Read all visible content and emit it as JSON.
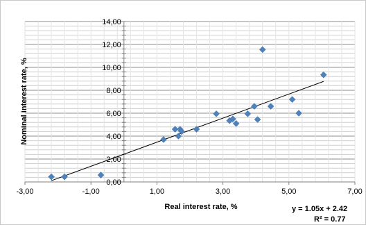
{
  "chart_data": {
    "type": "scatter",
    "title": "",
    "xlabel": "Real interest rate, %",
    "ylabel": "Nominal interest rate, %",
    "xlim": [
      -3,
      7
    ],
    "ylim": [
      0,
      14
    ],
    "x_ticks": [
      "-3,00",
      "-1,00",
      "1,00",
      "3,00",
      "5,00",
      "7,00"
    ],
    "y_ticks": [
      "0,00",
      "2,00",
      "4,00",
      "6,00",
      "8,00",
      "10,00",
      "12,00",
      "14,00"
    ],
    "grid": true,
    "legend": "none",
    "marker_color": "#4f81bd",
    "trend_line_color": "#000000",
    "series": [
      {
        "points": [
          [
            -2.2,
            0.45
          ],
          [
            -1.8,
            0.45
          ],
          [
            -0.7,
            0.6
          ],
          [
            1.2,
            3.7
          ],
          [
            1.55,
            4.6
          ],
          [
            1.65,
            4.0
          ],
          [
            1.7,
            4.6
          ],
          [
            1.75,
            4.4
          ],
          [
            2.2,
            4.6
          ],
          [
            2.8,
            5.95
          ],
          [
            3.2,
            5.35
          ],
          [
            3.3,
            5.5
          ],
          [
            3.4,
            5.1
          ],
          [
            3.75,
            5.95
          ],
          [
            3.95,
            6.6
          ],
          [
            4.05,
            5.45
          ],
          [
            4.2,
            11.55
          ],
          [
            4.45,
            6.6
          ],
          [
            5.1,
            7.2
          ],
          [
            5.3,
            6.0
          ],
          [
            6.05,
            9.35
          ]
        ]
      }
    ],
    "trendline": {
      "slope": 1.05,
      "intercept": 2.42,
      "x_range": [
        -2.2,
        6.05
      ],
      "equation": "y = 1.05x + 2.42",
      "r2": "R² = 0.77"
    }
  }
}
